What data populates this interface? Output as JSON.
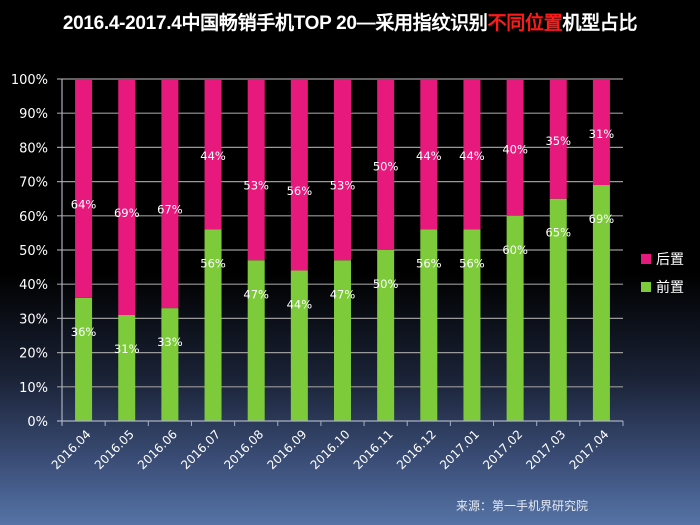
{
  "title": {
    "prefix": "2016.4-2017.4中国畅销手机TOP 20—采用指纹识别",
    "highlight": "不同位置",
    "suffix": "机型占比",
    "highlight_color": "#ff1a1a"
  },
  "source": "来源：第一手机界研究院",
  "chart_data": {
    "type": "bar",
    "stacked": true,
    "title": "2016.4-2017.4中国畅销手机TOP 20—采用指纹识别不同位置机型占比",
    "xlabel": "",
    "ylabel": "",
    "ylim": [
      0,
      100
    ],
    "yticks": [
      "0%",
      "10%",
      "20%",
      "30%",
      "40%",
      "50%",
      "60%",
      "70%",
      "80%",
      "90%",
      "100%"
    ],
    "grid": true,
    "legend_position": "right",
    "categories": [
      "2016.04",
      "2016.05",
      "2016.06",
      "2016.07",
      "2016.08",
      "2016.09",
      "2016.10",
      "2016.11",
      "2016.12",
      "2017.01",
      "2017.02",
      "2017.03",
      "2017.04"
    ],
    "series": [
      {
        "name": "前置",
        "color": "#7dcb3a",
        "values": [
          36,
          31,
          33,
          56,
          47,
          44,
          47,
          50,
          56,
          56,
          60,
          65,
          69
        ]
      },
      {
        "name": "后置",
        "color": "#e8197d",
        "values": [
          64,
          69,
          67,
          44,
          53,
          56,
          53,
          50,
          44,
          44,
          40,
          35,
          31
        ]
      }
    ],
    "legend": [
      "后置",
      "前置"
    ]
  }
}
